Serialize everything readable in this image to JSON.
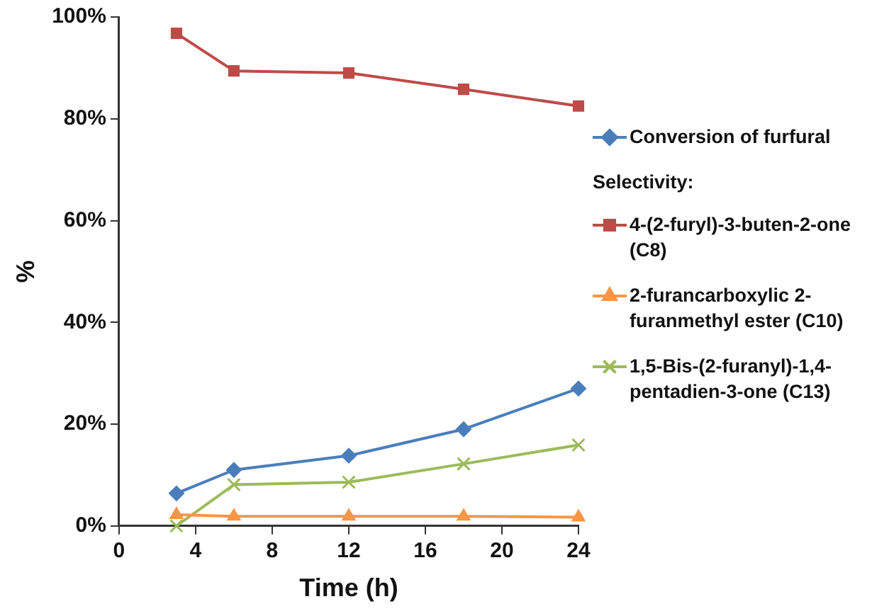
{
  "chart_data": {
    "type": "line",
    "xlabel": "Time (h)",
    "ylabel": "%",
    "x": [
      3,
      6,
      12,
      18,
      24
    ],
    "xlim": [
      0,
      24
    ],
    "xticks": [
      0,
      4,
      8,
      12,
      16,
      20,
      24
    ],
    "ylim": [
      0,
      100
    ],
    "yticks": [
      {
        "value": 0,
        "label": "0%"
      },
      {
        "value": 20,
        "label": "20%"
      },
      {
        "value": 40,
        "label": "40%"
      },
      {
        "value": 60,
        "label": "60%"
      },
      {
        "value": 80,
        "label": "80%"
      },
      {
        "value": 100,
        "label": "100%"
      }
    ],
    "grid": false,
    "legend": "right",
    "annotations": [
      "Selectivity:"
    ],
    "series": [
      {
        "name": "Conversion of furfural",
        "color": "#4a7ebb",
        "marker": "diamond",
        "values": [
          6.4,
          11.0,
          13.8,
          19.0,
          27.0
        ]
      },
      {
        "name": "4-(2-furyl)-3-buten-2-one (C8)",
        "color": "#be4b48",
        "marker": "square",
        "values": [
          96.8,
          89.4,
          89.0,
          85.8,
          82.5
        ]
      },
      {
        "name": "2-furancarboxylic 2-furanmethyl ester (C10)",
        "color": "#f79646",
        "marker": "triangle",
        "values": [
          2.2,
          1.9,
          1.9,
          1.9,
          1.7
        ]
      },
      {
        "name": "1,5-Bis-(2-furanyl)-1,4-pentadien-3-one (C13)",
        "color": "#9bbb59",
        "marker": "cross",
        "values": [
          0,
          8.1,
          8.6,
          12.2,
          15.9
        ]
      }
    ]
  }
}
